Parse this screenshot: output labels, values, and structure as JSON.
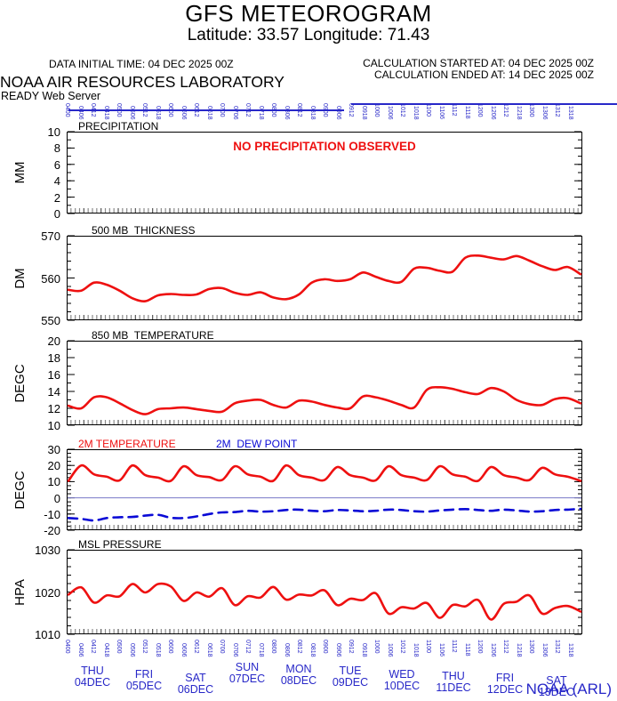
{
  "header": {
    "title": "GFS METEOROGRAM",
    "subtitle": "Latitude: 33.57 Longitude:  71.43",
    "data_initial_time": "DATA INITIAL TIME: 04 DEC 2025 00Z",
    "calculation_started": "CALCULATION STARTED AT: 04 DEC 2025 00Z",
    "calculation_ended": "CALCULATION ENDED AT: 14 DEC 2025 00Z",
    "organization": "NOAA AIR RESOURCES LABORATORY",
    "server": "READY Web Server"
  },
  "footer": {
    "credit": "NOAA (ARL)"
  },
  "colors": {
    "red_line": "#ee1010",
    "red_text": "#ee1010",
    "blue_line": "#0a0ad6",
    "blue_text": "#2828c8",
    "zero_line": "#7878c8",
    "axis": "#000000",
    "tick_gray": "#8a8a8a"
  },
  "x_axis": {
    "start": "04 DEC 2025 00Z",
    "end": "14 DEC 2025 00Z",
    "hours_step": 6,
    "synoptic_hours": [
      "00",
      "06",
      "12",
      "18"
    ],
    "days": [
      {
        "name": "THU",
        "date": "04DEC"
      },
      {
        "name": "FRI",
        "date": "05DEC"
      },
      {
        "name": "SAT",
        "date": "06DEC"
      },
      {
        "name": "SUN",
        "date": "07DEC"
      },
      {
        "name": "MON",
        "date": "08DEC"
      },
      {
        "name": "TUE",
        "date": "09DEC"
      },
      {
        "name": "WED",
        "date": "10DEC"
      },
      {
        "name": "THU",
        "date": "11DEC"
      },
      {
        "name": "FRI",
        "date": "12DEC"
      },
      {
        "name": "SAT",
        "date": "13DEC"
      }
    ]
  },
  "chart_data": [
    {
      "type": "line",
      "panel": "precipitation",
      "title": "PRECIPITATION",
      "unit": "MM",
      "ylim": [
        0,
        10
      ],
      "yticks": [
        0,
        2,
        4,
        6,
        8,
        10
      ],
      "minor_step": 1,
      "annotation": "NO PRECIPITATION OBSERVED",
      "series": []
    },
    {
      "type": "line",
      "panel": "500mb-thickness",
      "title": "500 MB  THICKNESS",
      "unit": "DM",
      "ylim": [
        550,
        570
      ],
      "yticks": [
        550,
        560,
        570
      ],
      "minor_step": 2,
      "series": [
        {
          "name": "500 MB THICKNESS",
          "color": "red_line",
          "style": "solid",
          "values": [
            557.2,
            557.0,
            558.9,
            558.4,
            557.0,
            555.2,
            554.5,
            555.9,
            556.2,
            556.0,
            556.1,
            557.4,
            557.6,
            556.5,
            556.0,
            556.6,
            555.4,
            555.0,
            556.1,
            558.9,
            559.7,
            559.3,
            559.7,
            561.3,
            560.3,
            559.3,
            559.1,
            562.2,
            562.4,
            561.7,
            561.5,
            564.8,
            565.3,
            564.8,
            564.4,
            565.2,
            564.1,
            562.8,
            561.9,
            562.6,
            560.9
          ]
        }
      ]
    },
    {
      "type": "line",
      "panel": "850mb-temperature",
      "title": "850 MB  TEMPERATURE",
      "unit": "DEGC",
      "ylim": [
        10,
        20
      ],
      "yticks": [
        10,
        12,
        14,
        16,
        18,
        20
      ],
      "minor_step": 1,
      "series": [
        {
          "name": "850 MB TEMPERATURE",
          "color": "red_line",
          "style": "solid",
          "values": [
            12.3,
            12.0,
            13.3,
            13.3,
            12.6,
            11.8,
            11.3,
            11.9,
            12.0,
            12.1,
            11.9,
            11.7,
            11.6,
            12.6,
            12.9,
            13.0,
            12.4,
            12.1,
            12.9,
            12.8,
            12.4,
            12.1,
            12.0,
            13.4,
            13.3,
            12.9,
            12.4,
            12.1,
            14.2,
            14.5,
            14.3,
            13.9,
            13.7,
            14.4,
            14.0,
            13.0,
            12.5,
            12.4,
            13.1,
            13.2,
            12.6
          ]
        }
      ]
    },
    {
      "type": "line",
      "panel": "2m-temperature-dewpoint",
      "legend": [
        {
          "label": "2M TEMPERATURE",
          "color": "red_text"
        },
        {
          "label": "2M  DEW POINT",
          "color": "blue_line"
        }
      ],
      "unit": "DEGC",
      "ylim": [
        -20,
        30
      ],
      "yticks": [
        -20,
        -10,
        0,
        10,
        20,
        30
      ],
      "minor_step": 2.5,
      "zero_line": true,
      "series": [
        {
          "name": "2M TEMPERATURE",
          "color": "red_line",
          "style": "solid",
          "values": [
            10.5,
            20.0,
            14.5,
            13.0,
            10.8,
            20.0,
            14.0,
            12.5,
            10.5,
            19.5,
            14.0,
            12.8,
            11.0,
            19.5,
            14.5,
            13.0,
            10.5,
            20.0,
            14.0,
            12.5,
            11.0,
            19.0,
            14.0,
            12.5,
            10.8,
            19.5,
            14.0,
            12.5,
            11.0,
            19.5,
            14.5,
            13.0,
            10.5,
            19.0,
            14.0,
            12.5,
            11.0,
            18.5,
            14.5,
            13.0,
            10.5
          ]
        },
        {
          "name": "2M DEW POINT",
          "color": "blue_line",
          "style": "dashed",
          "values": [
            -12.5,
            -13.0,
            -14.0,
            -12.5,
            -12.0,
            -11.8,
            -11.0,
            -10.5,
            -12.3,
            -12.5,
            -11.5,
            -10.0,
            -9.0,
            -8.8,
            -8.0,
            -8.5,
            -8.3,
            -7.5,
            -7.3,
            -8.0,
            -8.3,
            -7.5,
            -7.8,
            -8.3,
            -8.0,
            -7.3,
            -7.5,
            -8.3,
            -8.5,
            -7.8,
            -7.3,
            -7.0,
            -7.5,
            -8.0,
            -7.3,
            -7.8,
            -8.5,
            -8.3,
            -7.5,
            -7.3,
            -6.8
          ]
        }
      ]
    },
    {
      "type": "line",
      "panel": "msl-pressure",
      "title": "MSL PRESSURE",
      "unit": "HPA",
      "ylim": [
        1010,
        1030
      ],
      "yticks": [
        1010,
        1020,
        1030
      ],
      "minor_step": 2,
      "series": [
        {
          "name": "MSL PRESSURE",
          "color": "red_line",
          "style": "solid",
          "values": [
            1019.4,
            1021.1,
            1017.5,
            1019.2,
            1019.0,
            1021.9,
            1019.9,
            1021.9,
            1021.3,
            1017.9,
            1019.9,
            1018.9,
            1020.9,
            1016.9,
            1019.0,
            1018.7,
            1021.2,
            1018.2,
            1019.4,
            1019.2,
            1020.4,
            1016.9,
            1018.4,
            1018.1,
            1019.7,
            1014.9,
            1016.4,
            1016.1,
            1017.4,
            1013.9,
            1016.9,
            1016.6,
            1018.1,
            1013.5,
            1017.2,
            1017.7,
            1019.2,
            1014.9,
            1016.2,
            1016.7,
            1015.4
          ]
        }
      ]
    }
  ]
}
